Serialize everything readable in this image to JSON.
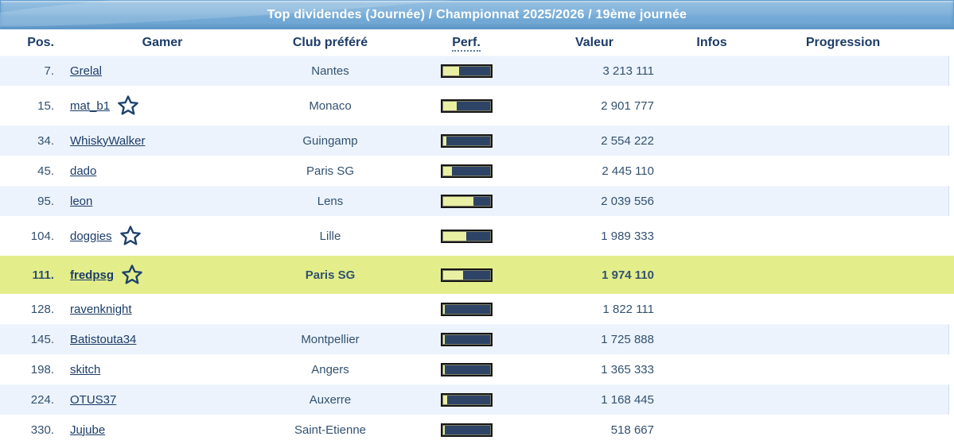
{
  "title": "Top dividendes (Journée) / Championnat 2025/2026 / 19ème journée",
  "table": {
    "columns": [
      "Pos.",
      "Gamer",
      "Club préféré",
      "Perf.",
      "Valeur",
      "Infos",
      "Progression"
    ],
    "rows": [
      {
        "pos": "7.",
        "gamer": "Grelal",
        "star": false,
        "club": "Nantes",
        "perf_pct": 34,
        "value": "3 213 111",
        "highlight": false
      },
      {
        "pos": "15.",
        "gamer": "mat_b1",
        "star": true,
        "club": "Monaco",
        "perf_pct": 30,
        "value": "2 901 777",
        "highlight": false
      },
      {
        "pos": "34.",
        "gamer": "WhiskyWalker",
        "star": false,
        "club": "Guingamp",
        "perf_pct": 8,
        "value": "2 554 222",
        "highlight": false
      },
      {
        "pos": "45.",
        "gamer": "dado",
        "star": false,
        "club": "Paris SG",
        "perf_pct": 20,
        "value": "2 445 110",
        "highlight": false
      },
      {
        "pos": "95.",
        "gamer": "leon",
        "star": false,
        "club": "Lens",
        "perf_pct": 66,
        "value": "2 039 556",
        "highlight": false
      },
      {
        "pos": "104.",
        "gamer": "doggies",
        "star": true,
        "club": "Lille",
        "perf_pct": 50,
        "value": "1 989 333",
        "highlight": false
      },
      {
        "pos": "111.",
        "gamer": "fredpsg",
        "star": true,
        "club": "Paris SG",
        "perf_pct": 44,
        "value": "1 974 110",
        "highlight": true
      },
      {
        "pos": "128.",
        "gamer": "ravenknight",
        "star": false,
        "club": "",
        "perf_pct": 5,
        "value": "1 822 111",
        "highlight": false
      },
      {
        "pos": "145.",
        "gamer": "Batistouta34",
        "star": false,
        "club": "Montpellier",
        "perf_pct": 5,
        "value": "1 725 888",
        "highlight": false
      },
      {
        "pos": "198.",
        "gamer": "skitch",
        "star": false,
        "club": "Angers",
        "perf_pct": 5,
        "value": "1 365 333",
        "highlight": false
      },
      {
        "pos": "224.",
        "gamer": "OTUS37",
        "star": false,
        "club": "Auxerre",
        "perf_pct": 9,
        "value": "1 168 445",
        "highlight": false
      },
      {
        "pos": "330.",
        "gamer": "Jujube",
        "star": false,
        "club": "Saint-Etienne",
        "perf_pct": 4,
        "value": "518 667",
        "highlight": false
      }
    ]
  },
  "icons": {
    "star": "outline-star"
  },
  "colors": {
    "title_bar": "#7cafd8",
    "title_text": "#ffffff",
    "header_text": "#1d3c68",
    "stripe_row": "#ecf3fc",
    "highlight_row": "#e3ee8b",
    "bar_track": "#2d4466",
    "bar_fill": "#e9f0a4",
    "link": "#1d3c68"
  }
}
